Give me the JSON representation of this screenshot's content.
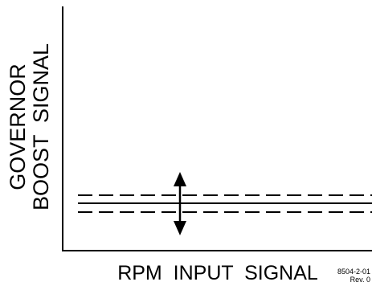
{
  "diagram": {
    "y_axis_label_lines": [
      "GOVERNOR",
      "BOOST  SIGNAL"
    ],
    "x_axis_label": "RPM  INPUT  SIGNAL",
    "reference_code": "8504-2-01",
    "revision": "Rev. 0",
    "line_color": "#000000",
    "background_color": "#ffffff",
    "lines": [
      {
        "name": "upper-limit-line",
        "style": "dashed"
      },
      {
        "name": "center-line",
        "style": "solid"
      },
      {
        "name": "lower-limit-line",
        "style": "dashed"
      }
    ],
    "adjustment_arrow": {
      "direction": "up-down",
      "icon": "double-headed-vertical-arrow"
    }
  }
}
